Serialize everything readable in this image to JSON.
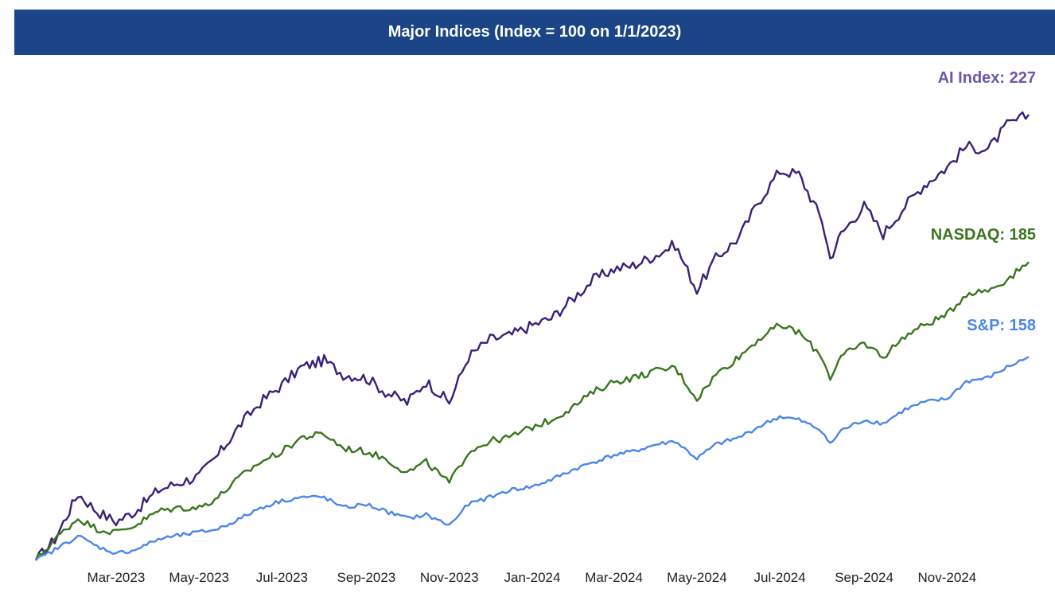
{
  "chart_data": {
    "type": "line",
    "title": "Major Indices (Index = 100 on 1/1/2023)",
    "xlabel": "",
    "ylabel": "",
    "x_start": "2023-01-01",
    "x_end": "2024-12-31",
    "ylim": [
      100,
      232
    ],
    "grid": false,
    "legend": "end-of-line labels",
    "x_ticks": [
      "Mar-2023",
      "May-2023",
      "Jul-2023",
      "Sep-2023",
      "Nov-2023",
      "Jan-2024",
      "Mar-2024",
      "May-2024",
      "Jul-2024",
      "Sep-2024",
      "Nov-2024"
    ],
    "series": [
      {
        "name": "AI Index",
        "end_label": "AI Index: 227",
        "color": "#3b1f78",
        "label_color": "#6e56a8",
        "points": [
          [
            "2023-01-01",
            100
          ],
          [
            "2023-01-15",
            106
          ],
          [
            "2023-02-01",
            119
          ],
          [
            "2023-02-15",
            114
          ],
          [
            "2023-03-01",
            111
          ],
          [
            "2023-03-15",
            114
          ],
          [
            "2023-04-01",
            120
          ],
          [
            "2023-04-15",
            122
          ],
          [
            "2023-05-01",
            124
          ],
          [
            "2023-05-15",
            130
          ],
          [
            "2023-06-01",
            139
          ],
          [
            "2023-06-15",
            145
          ],
          [
            "2023-07-01",
            150
          ],
          [
            "2023-07-15",
            155
          ],
          [
            "2023-08-01",
            157
          ],
          [
            "2023-08-15",
            153
          ],
          [
            "2023-09-01",
            152
          ],
          [
            "2023-09-15",
            148
          ],
          [
            "2023-10-01",
            145
          ],
          [
            "2023-10-15",
            151
          ],
          [
            "2023-11-01",
            145
          ],
          [
            "2023-11-15",
            158
          ],
          [
            "2023-12-01",
            163
          ],
          [
            "2023-12-15",
            164
          ],
          [
            "2024-01-01",
            167
          ],
          [
            "2024-01-15",
            169
          ],
          [
            "2024-02-01",
            175
          ],
          [
            "2024-02-15",
            180
          ],
          [
            "2024-03-01",
            183
          ],
          [
            "2024-03-15",
            184
          ],
          [
            "2024-04-01",
            187
          ],
          [
            "2024-04-15",
            190
          ],
          [
            "2024-05-01",
            177
          ],
          [
            "2024-05-15",
            186
          ],
          [
            "2024-06-01",
            192
          ],
          [
            "2024-06-15",
            202
          ],
          [
            "2024-07-01",
            211
          ],
          [
            "2024-07-15",
            210
          ],
          [
            "2024-08-01",
            197
          ],
          [
            "2024-08-07",
            186
          ],
          [
            "2024-08-15",
            193
          ],
          [
            "2024-09-01",
            201
          ],
          [
            "2024-09-15",
            193
          ],
          [
            "2024-10-01",
            201
          ],
          [
            "2024-10-15",
            207
          ],
          [
            "2024-11-01",
            212
          ],
          [
            "2024-11-15",
            218
          ],
          [
            "2024-12-01",
            217
          ],
          [
            "2024-12-15",
            224
          ],
          [
            "2024-12-31",
            227
          ]
        ]
      },
      {
        "name": "NASDAQ",
        "end_label": "NASDAQ: 185",
        "color": "#38761d",
        "label_color": "#38761d",
        "points": [
          [
            "2023-01-01",
            100
          ],
          [
            "2023-01-15",
            106
          ],
          [
            "2023-02-01",
            112
          ],
          [
            "2023-02-15",
            109
          ],
          [
            "2023-03-01",
            108
          ],
          [
            "2023-03-15",
            110
          ],
          [
            "2023-04-01",
            114
          ],
          [
            "2023-04-15",
            115
          ],
          [
            "2023-05-01",
            115
          ],
          [
            "2023-05-15",
            118
          ],
          [
            "2023-06-01",
            124
          ],
          [
            "2023-06-15",
            128
          ],
          [
            "2023-07-01",
            131
          ],
          [
            "2023-07-15",
            135
          ],
          [
            "2023-08-01",
            136
          ],
          [
            "2023-08-15",
            132
          ],
          [
            "2023-09-01",
            131
          ],
          [
            "2023-09-15",
            129
          ],
          [
            "2023-10-01",
            125
          ],
          [
            "2023-10-15",
            128
          ],
          [
            "2023-11-01",
            122
          ],
          [
            "2023-11-15",
            131
          ],
          [
            "2023-12-01",
            134
          ],
          [
            "2023-12-15",
            135
          ],
          [
            "2024-01-01",
            138
          ],
          [
            "2024-01-15",
            140
          ],
          [
            "2024-02-01",
            144
          ],
          [
            "2024-02-15",
            148
          ],
          [
            "2024-03-01",
            151
          ],
          [
            "2024-03-15",
            152
          ],
          [
            "2024-04-01",
            154
          ],
          [
            "2024-04-15",
            155
          ],
          [
            "2024-05-01",
            146
          ],
          [
            "2024-05-15",
            153
          ],
          [
            "2024-06-01",
            158
          ],
          [
            "2024-06-15",
            163
          ],
          [
            "2024-07-01",
            167
          ],
          [
            "2024-07-15",
            165
          ],
          [
            "2024-08-01",
            158
          ],
          [
            "2024-08-07",
            152
          ],
          [
            "2024-08-15",
            158
          ],
          [
            "2024-09-01",
            162
          ],
          [
            "2024-09-15",
            158
          ],
          [
            "2024-10-01",
            164
          ],
          [
            "2024-10-15",
            167
          ],
          [
            "2024-11-01",
            170
          ],
          [
            "2024-11-15",
            176
          ],
          [
            "2024-12-01",
            177
          ],
          [
            "2024-12-15",
            180
          ],
          [
            "2024-12-31",
            185
          ]
        ]
      },
      {
        "name": "S&P",
        "end_label": "S&P: 158",
        "color": "#4a86e8",
        "label_color": "#4a86e8",
        "points": [
          [
            "2023-01-01",
            100
          ],
          [
            "2023-01-15",
            103
          ],
          [
            "2023-02-01",
            107
          ],
          [
            "2023-02-15",
            104
          ],
          [
            "2023-03-01",
            102
          ],
          [
            "2023-03-15",
            103
          ],
          [
            "2023-04-01",
            106
          ],
          [
            "2023-04-15",
            107
          ],
          [
            "2023-05-01",
            108
          ],
          [
            "2023-05-15",
            109
          ],
          [
            "2023-06-01",
            112
          ],
          [
            "2023-06-15",
            115
          ],
          [
            "2023-07-01",
            117
          ],
          [
            "2023-07-15",
            118
          ],
          [
            "2023-08-01",
            118
          ],
          [
            "2023-08-15",
            115
          ],
          [
            "2023-09-01",
            116
          ],
          [
            "2023-09-15",
            114
          ],
          [
            "2023-10-01",
            112
          ],
          [
            "2023-10-15",
            113
          ],
          [
            "2023-11-01",
            110
          ],
          [
            "2023-11-15",
            116
          ],
          [
            "2023-12-01",
            118
          ],
          [
            "2023-12-15",
            120
          ],
          [
            "2024-01-01",
            121
          ],
          [
            "2024-01-15",
            123
          ],
          [
            "2024-02-01",
            126
          ],
          [
            "2024-02-15",
            128
          ],
          [
            "2024-03-01",
            130
          ],
          [
            "2024-03-15",
            131
          ],
          [
            "2024-04-01",
            133
          ],
          [
            "2024-04-15",
            134
          ],
          [
            "2024-05-01",
            129
          ],
          [
            "2024-05-15",
            133
          ],
          [
            "2024-06-01",
            135
          ],
          [
            "2024-06-15",
            138
          ],
          [
            "2024-07-01",
            141
          ],
          [
            "2024-07-15",
            140
          ],
          [
            "2024-08-01",
            137
          ],
          [
            "2024-08-07",
            133
          ],
          [
            "2024-08-15",
            137
          ],
          [
            "2024-09-01",
            140
          ],
          [
            "2024-09-15",
            139
          ],
          [
            "2024-10-01",
            143
          ],
          [
            "2024-10-15",
            145
          ],
          [
            "2024-11-01",
            146
          ],
          [
            "2024-11-15",
            151
          ],
          [
            "2024-12-01",
            152
          ],
          [
            "2024-12-15",
            155
          ],
          [
            "2024-12-31",
            158
          ]
        ]
      }
    ]
  }
}
